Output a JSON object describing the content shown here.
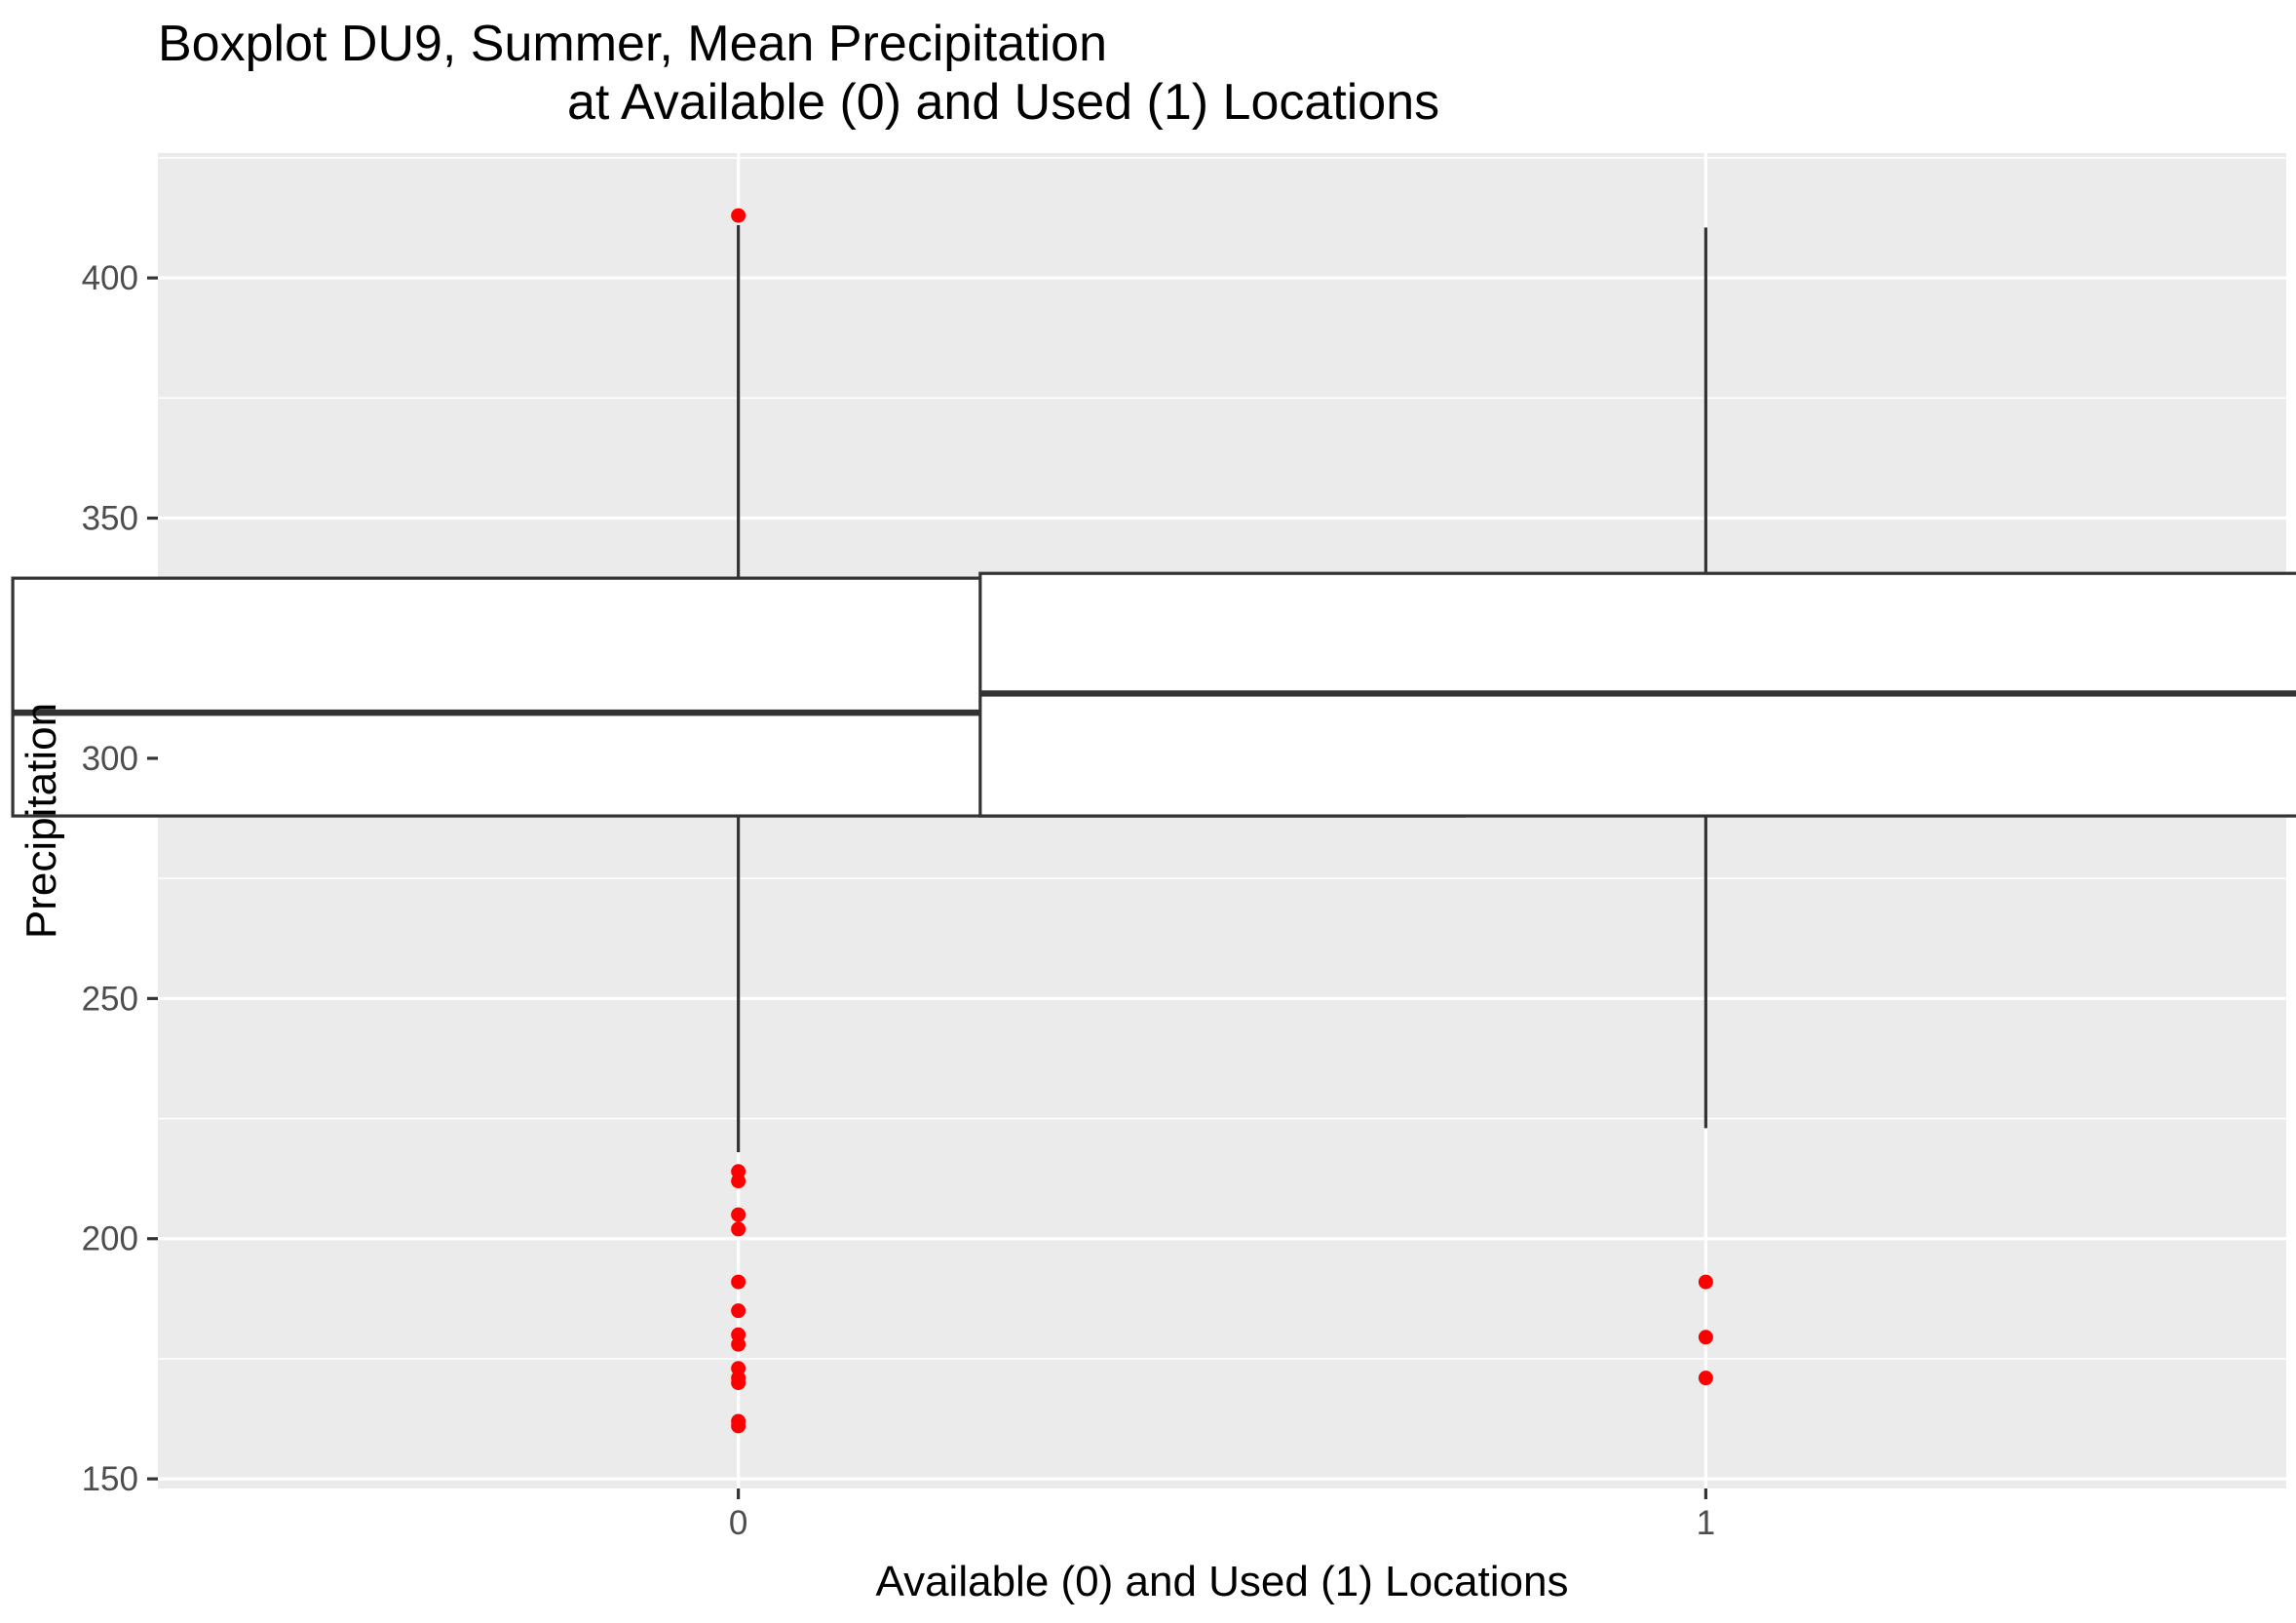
{
  "chart_data": {
    "type": "boxplot",
    "title_line1": "Boxplot DU9, Summer, Mean Precipitation",
    "title_line2": "at Available (0) and Used (1) Locations",
    "xlabel": "Available (0) and Used (1) Locations",
    "ylabel": "Precipitation",
    "categories": [
      "0",
      "1"
    ],
    "ylim": [
      148,
      426
    ],
    "y_ticks": [
      150,
      200,
      250,
      300,
      350,
      400
    ],
    "y_tick_labels": [
      "150",
      "200",
      "250",
      "300",
      "350",
      "400"
    ],
    "grid": true,
    "colors": {
      "panel_background": "#ebebeb",
      "gridline": "#ffffff",
      "box_fill": "#ffffff",
      "box_line": "#333333",
      "outlier": "#ff0000"
    },
    "boxes": [
      {
        "category": "0",
        "q1": 288,
        "median": 309.5,
        "q3": 337.5,
        "whisker_low": 218,
        "whisker_high": 411,
        "outliers": [
          413,
          214,
          212,
          205,
          202,
          191,
          185,
          180,
          178,
          173,
          171,
          170,
          162,
          161
        ]
      },
      {
        "category": "1",
        "q1": 288,
        "median": 313.5,
        "q3": 338.5,
        "whisker_low": 223,
        "whisker_high": 410.5,
        "outliers": [
          191,
          179.5,
          171
        ]
      }
    ]
  }
}
